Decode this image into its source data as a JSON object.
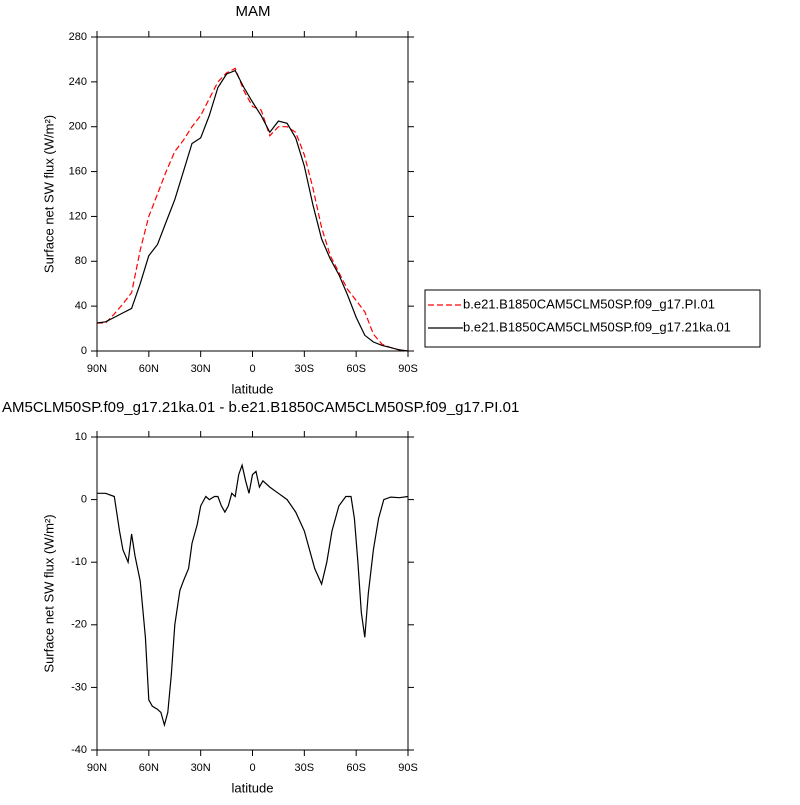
{
  "chart_data": [
    {
      "type": "line",
      "title": "MAM",
      "x_label": "latitude",
      "y_label": "Surface net SW flux (W/m²)",
      "x": [
        90,
        85,
        80,
        75,
        70,
        65,
        60,
        55,
        50,
        45,
        40,
        35,
        30,
        25,
        20,
        15,
        10,
        5,
        0,
        -5,
        -10,
        -15,
        -20,
        -25,
        -30,
        -35,
        -40,
        -45,
        -50,
        -55,
        -60,
        -65,
        -70,
        -75,
        -80,
        -85,
        -90
      ],
      "series": [
        {
          "name": "b.e21.B1850CAM5CLM50SP.f09_g17.PI.01",
          "color": "#ff0000",
          "line_style": "dashed",
          "values": [
            25,
            25,
            33,
            42,
            52,
            90,
            120,
            140,
            160,
            178,
            188,
            200,
            210,
            225,
            240,
            248,
            252,
            232,
            218,
            215,
            192,
            200,
            200,
            195,
            175,
            145,
            110,
            85,
            70,
            55,
            45,
            35,
            15,
            6,
            3,
            1,
            0
          ]
        },
        {
          "name": "b.e21.B1850CAM5CLM50SP.f09_g17.21ka.01",
          "color": "#000000",
          "line_style": "solid",
          "values": [
            25,
            26,
            30,
            34,
            38,
            60,
            85,
            95,
            115,
            135,
            160,
            185,
            190,
            210,
            235,
            247,
            250,
            235,
            222,
            210,
            195,
            205,
            203,
            190,
            165,
            130,
            100,
            82,
            68,
            50,
            30,
            14,
            8,
            5,
            3,
            1,
            0
          ]
        }
      ],
      "xlim": [
        90,
        -90
      ],
      "xticks": [
        {
          "value": 90,
          "label": "90N"
        },
        {
          "value": 60,
          "label": "60N"
        },
        {
          "value": 30,
          "label": "30N"
        },
        0,
        {
          "value": -30,
          "label": "30S"
        },
        {
          "value": -60,
          "label": "60S"
        },
        {
          "value": -90,
          "label": "90S"
        }
      ],
      "ylim": [
        0,
        280
      ],
      "yticks": [
        0,
        40,
        80,
        120,
        160,
        200,
        240,
        280
      ],
      "legend": "outside-right"
    },
    {
      "type": "line",
      "title": "AM5CLM50SP.f09_g17.21ka.01 - b.e21.B1850CAM5CLM50SP.f09_g17.PI.01",
      "x_label": "latitude",
      "y_label": "Surface net SW flux (W/m²)",
      "x": [
        90,
        85,
        80,
        77,
        75,
        72,
        70,
        68,
        65,
        62,
        60,
        58,
        55,
        53,
        51,
        49,
        47,
        45,
        42,
        40,
        37,
        35,
        32,
        30,
        27,
        25,
        22,
        20,
        18,
        16,
        14,
        12,
        10,
        8,
        6,
        4,
        2,
        0,
        -2,
        -4,
        -6,
        -10,
        -15,
        -20,
        -25,
        -30,
        -33,
        -36,
        -40,
        -43,
        -46,
        -50,
        -54,
        -57,
        -59,
        -61,
        -63,
        -65,
        -67,
        -70,
        -73,
        -76,
        -80,
        -85,
        -90
      ],
      "series": [
        {
          "name": null,
          "color": "#000000",
          "line_style": "solid",
          "values": [
            1,
            1,
            0.5,
            -5,
            -8,
            -10,
            -5.5,
            -9,
            -13,
            -22,
            -32,
            -33,
            -33.5,
            -34,
            -36,
            -34,
            -28,
            -20,
            -14.5,
            -13,
            -11,
            -7,
            -4,
            -1,
            0.5,
            0,
            0.5,
            0.5,
            -1,
            -2,
            -1,
            1,
            0.5,
            4,
            5.5,
            3,
            1,
            4,
            4.5,
            2,
            3,
            2,
            1,
            0,
            -2,
            -5,
            -8,
            -11,
            -13.5,
            -10,
            -5,
            -1,
            0.5,
            0.5,
            -3,
            -10,
            -18,
            -22,
            -15,
            -8,
            -3,
            0,
            0.4,
            0.3,
            0.5
          ]
        }
      ],
      "xlim": [
        90,
        -90
      ],
      "xticks": [
        {
          "value": 90,
          "label": "90N"
        },
        {
          "value": 60,
          "label": "60N"
        },
        {
          "value": 30,
          "label": "30N"
        },
        0,
        {
          "value": -30,
          "label": "30S"
        },
        {
          "value": -60,
          "label": "60S"
        },
        {
          "value": -90,
          "label": "90S"
        }
      ],
      "ylim": [
        -40,
        10
      ],
      "yticks": [
        -40,
        -30,
        -20,
        -10,
        0,
        10
      ]
    }
  ]
}
